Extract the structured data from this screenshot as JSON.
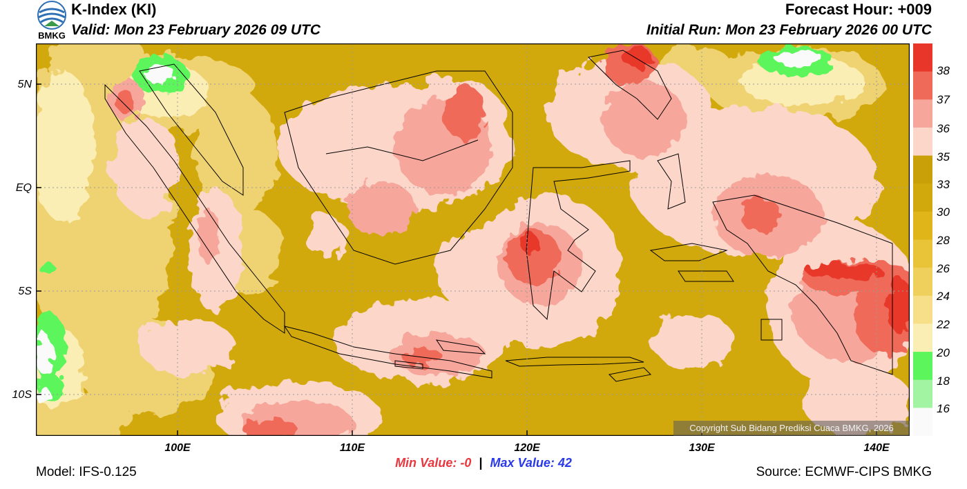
{
  "header": {
    "title": "K-Index (KI)",
    "valid": "Valid: Mon 23 February 2026 09 UTC",
    "forecast_hour": "Forecast Hour: +009",
    "initial_run": "Initial Run: Mon 23 February 2026 00 UTC"
  },
  "logo": {
    "label": "BMKG"
  },
  "axes": {
    "lat_labels": [
      "5N",
      "EQ",
      "5S",
      "10S"
    ],
    "lon_labels": [
      "100E",
      "110E",
      "120E",
      "130E",
      "140E"
    ]
  },
  "colorbar": {
    "labels": [
      "38",
      "37",
      "36",
      "35",
      "33",
      "30",
      "28",
      "26",
      "24",
      "22",
      "20",
      "18",
      "16"
    ],
    "colors": [
      "#e8372a",
      "#ef6a58",
      "#f6a69b",
      "#fcd6c9",
      "#c9a008",
      "#d2a90c",
      "#e0b51a",
      "#e9c338",
      "#f0d05c",
      "#f6df88",
      "#fbeeb4",
      "#5cf55c",
      "#a2f4a2",
      "#fafafa"
    ]
  },
  "map_colors": {
    "base": "#d2a90c",
    "light": "#efd272",
    "pale": "#fbeeb4",
    "green": "#5cf55c",
    "white": "#fafafa",
    "pink": "#fcd6c9",
    "salmon": "#f6a69b",
    "red": "#ef6a58",
    "deepred": "#e8372a"
  },
  "footer": {
    "min_label": "Min Value:",
    "min_value": "-0",
    "separator": "|",
    "max_label": "Max Value:",
    "max_value": "42",
    "min_color": "#e8373f",
    "max_color": "#2a3ae8",
    "model": "Model: IFS-0.125",
    "source": "Source: ECMWF-CIPS BMKG",
    "copyright": "Copyright Sub Bidang Prediksi Cuaca BMKG, 2026"
  }
}
